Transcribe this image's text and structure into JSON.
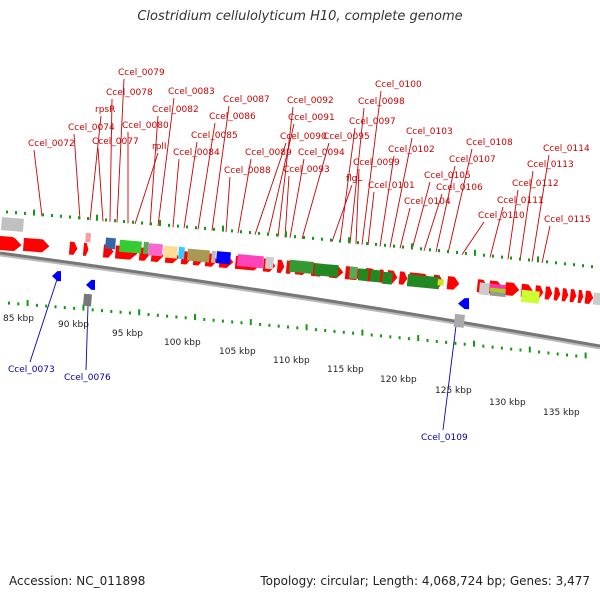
{
  "title": "Clostridium cellulolyticum H10, complete genome",
  "footer": {
    "accession": "Accession: NC_011898",
    "topology": "Topology: circular; Length: 4,068,724 bp; Genes: 3,477"
  },
  "colors": {
    "forward_gene": "#ff0000",
    "reverse_gene": "#0000ff",
    "label_fwd": "#cc0000",
    "label_rev": "#0000aa",
    "backbone": "#888888"
  },
  "scale_labels": [
    "85 kbp",
    "90 kbp",
    "95 kbp",
    "100 kbp",
    "105 kbp",
    "110 kbp",
    "115 kbp",
    "120 kbp",
    "125 kbp",
    "130 kbp",
    "135 kbp"
  ],
  "forward_labels": [
    "Ccel_0072",
    "Ccel_0074",
    "rpsR",
    "Ccel_0077",
    "Ccel_0078",
    "Ccel_0079",
    "Ccel_0080",
    "rplI",
    "Ccel_0082",
    "Ccel_0083",
    "Ccel_0084",
    "Ccel_0085",
    "Ccel_0086",
    "Ccel_0087",
    "Ccel_0088",
    "Ccel_0089",
    "Ccel_0090",
    "Ccel_0091",
    "Ccel_0092",
    "Ccel_0093",
    "Ccel_0094",
    "Ccel_0095",
    "flgL",
    "Ccel_0097",
    "Ccel_0098",
    "Ccel_0099",
    "Ccel_0100",
    "Ccel_0101",
    "Ccel_0102",
    "Ccel_0103",
    "Ccel_0104",
    "Ccel_0105",
    "Ccel_0106",
    "Ccel_0107",
    "Ccel_0108",
    "Ccel_0110",
    "Ccel_0111",
    "Ccel_0112",
    "Ccel_0113",
    "Ccel_0114",
    "Ccel_0115"
  ],
  "reverse_labels": [
    "Ccel_0073",
    "Ccel_0076",
    "Ccel_0109"
  ]
}
